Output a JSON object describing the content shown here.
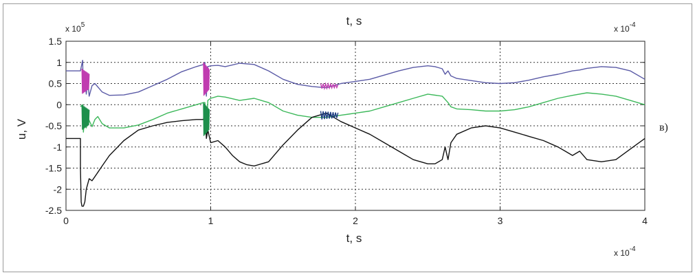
{
  "chart_data": {
    "type": "line",
    "title": "t, s",
    "xlabel": "t, s",
    "ylabel": "u, V",
    "panel_label": "в)",
    "x_multiplier": {
      "base": "x 10",
      "exponent": "-4"
    },
    "y_multiplier": {
      "base": "x 10",
      "exponent": "5"
    },
    "xlim": [
      0,
      4
    ],
    "ylim": [
      -2.5,
      1.5
    ],
    "x_ticks": [
      "0",
      "1",
      "2",
      "3",
      "4"
    ],
    "y_ticks": [
      "1.5",
      "1",
      "0.5",
      "0",
      "-0.5",
      "-1",
      "-1.5",
      "-2",
      "-2.5"
    ],
    "x_tick_values": [
      0,
      1,
      2,
      3,
      4
    ],
    "y_tick_values": [
      1.5,
      1,
      0.5,
      0,
      -0.5,
      -1,
      -1.5,
      -2,
      -2.5
    ],
    "grid": true,
    "colors": {
      "phase_a": "#5a5aa6",
      "phase_b": "#3cb85a",
      "phase_c": "#111111",
      "transient_a": "#c03cb0",
      "transient_b": "#1e8f4c",
      "transient_c": "#1a3a80"
    },
    "series": [
      {
        "color": "#5a5aa6",
        "x": [
          0,
          0.1,
          0.115,
          0.12,
          0.13,
          0.14,
          0.15,
          0.16,
          0.18,
          0.2,
          0.25,
          0.3,
          0.4,
          0.5,
          0.6,
          0.7,
          0.8,
          0.9,
          0.95,
          0.96,
          0.97,
          0.98,
          1.0,
          1.05,
          1.1,
          1.2,
          1.3,
          1.4,
          1.5,
          1.6,
          1.7,
          1.8,
          1.85,
          1.9,
          2.0,
          2.1,
          2.2,
          2.3,
          2.4,
          2.5,
          2.55,
          2.6,
          2.62,
          2.64,
          2.66,
          2.7,
          2.8,
          2.9,
          3.0,
          3.1,
          3.2,
          3.3,
          3.4,
          3.5,
          3.55,
          3.6,
          3.7,
          3.8,
          3.9,
          4.0
        ],
        "y": [
          0.8,
          0.8,
          1.05,
          0.3,
          0.75,
          0.25,
          0.6,
          0.2,
          0.45,
          0.5,
          0.3,
          0.22,
          0.23,
          0.3,
          0.45,
          0.6,
          0.78,
          0.9,
          0.95,
          1.0,
          0.2,
          0.9,
          0.92,
          0.93,
          0.9,
          0.98,
          0.95,
          0.8,
          0.6,
          0.48,
          0.43,
          0.4,
          0.45,
          0.5,
          0.55,
          0.6,
          0.7,
          0.8,
          0.88,
          0.92,
          0.9,
          0.85,
          0.72,
          0.8,
          0.68,
          0.62,
          0.57,
          0.52,
          0.5,
          0.52,
          0.58,
          0.66,
          0.72,
          0.8,
          0.82,
          0.86,
          0.9,
          0.88,
          0.8,
          0.6
        ]
      },
      {
        "color": "#3cb85a",
        "x": [
          0.1,
          0.115,
          0.12,
          0.13,
          0.14,
          0.15,
          0.18,
          0.2,
          0.22,
          0.25,
          0.3,
          0.4,
          0.5,
          0.6,
          0.7,
          0.8,
          0.9,
          0.95,
          0.96,
          0.97,
          0.98,
          1.0,
          1.05,
          1.1,
          1.2,
          1.3,
          1.4,
          1.5,
          1.6,
          1.7,
          1.8,
          1.9,
          2.0,
          2.1,
          2.2,
          2.3,
          2.4,
          2.5,
          2.6,
          2.64,
          2.66,
          2.7,
          2.8,
          2.9,
          3.0,
          3.1,
          3.2,
          3.3,
          3.4,
          3.5,
          3.6,
          3.7,
          3.8,
          3.9,
          4.0
        ],
        "y": [
          -0.05,
          0.0,
          -0.65,
          -0.2,
          -0.55,
          -0.3,
          -0.52,
          -0.35,
          -0.28,
          -0.45,
          -0.55,
          -0.55,
          -0.48,
          -0.35,
          -0.2,
          -0.1,
          0.0,
          0.05,
          0.05,
          -0.75,
          0.1,
          0.15,
          0.2,
          0.18,
          0.1,
          0.15,
          0.05,
          -0.15,
          -0.25,
          -0.3,
          -0.3,
          -0.25,
          -0.2,
          -0.15,
          -0.05,
          0.05,
          0.15,
          0.25,
          0.2,
          0.05,
          -0.05,
          -0.1,
          -0.12,
          -0.15,
          -0.15,
          -0.12,
          -0.05,
          0.05,
          0.15,
          0.22,
          0.28,
          0.25,
          0.2,
          0.1,
          0.0
        ]
      },
      {
        "color": "#111111",
        "x": [
          0,
          0.1,
          0.1,
          0.105,
          0.11,
          0.12,
          0.13,
          0.14,
          0.16,
          0.18,
          0.2,
          0.22,
          0.25,
          0.3,
          0.4,
          0.5,
          0.6,
          0.7,
          0.8,
          0.9,
          0.95,
          0.96,
          0.97,
          0.98,
          1.0,
          1.05,
          1.1,
          1.15,
          1.2,
          1.25,
          1.3,
          1.4,
          1.5,
          1.6,
          1.7,
          1.75,
          1.8,
          1.85,
          1.9,
          2.0,
          2.1,
          2.2,
          2.3,
          2.4,
          2.5,
          2.55,
          2.6,
          2.62,
          2.64,
          2.66,
          2.7,
          2.8,
          2.9,
          3.0,
          3.1,
          3.2,
          3.3,
          3.4,
          3.45,
          3.5,
          3.55,
          3.6,
          3.7,
          3.8,
          3.9,
          4.0
        ],
        "y": [
          -0.8,
          -0.8,
          -1.5,
          -2.3,
          -2.4,
          -2.4,
          -2.3,
          -2.0,
          -1.75,
          -1.8,
          -1.7,
          -1.6,
          -1.45,
          -1.2,
          -0.85,
          -0.6,
          -0.5,
          -0.42,
          -0.38,
          -0.35,
          -0.35,
          0.0,
          -0.8,
          -0.6,
          -0.9,
          -0.85,
          -1.0,
          -1.2,
          -1.35,
          -1.42,
          -1.45,
          -1.35,
          -0.95,
          -0.6,
          -0.3,
          -0.25,
          -0.2,
          -0.3,
          -0.4,
          -0.55,
          -0.7,
          -0.9,
          -1.1,
          -1.3,
          -1.4,
          -1.4,
          -1.3,
          -1.0,
          -1.3,
          -0.9,
          -0.7,
          -0.55,
          -0.5,
          -0.55,
          -0.65,
          -0.75,
          -0.85,
          -1.0,
          -1.1,
          -1.2,
          -1.1,
          -1.3,
          -1.35,
          -1.3,
          -1.05,
          -0.8
        ]
      }
    ]
  }
}
